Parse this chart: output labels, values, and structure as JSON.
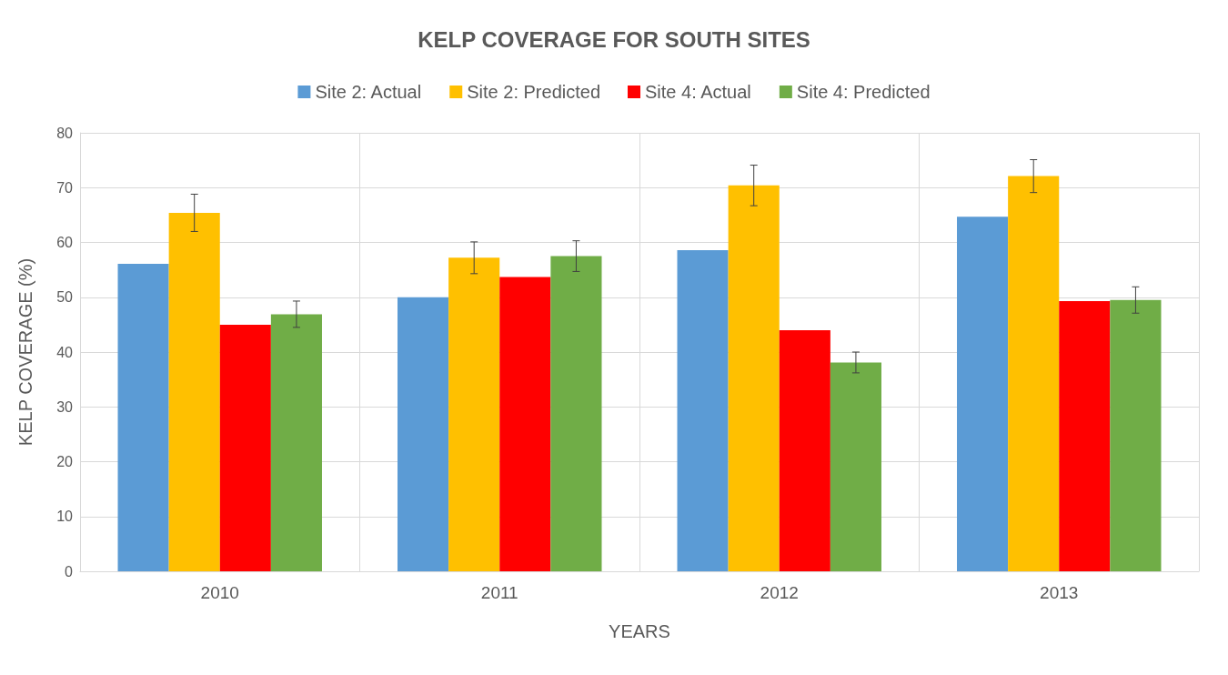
{
  "chart_data": {
    "type": "bar",
    "title": "KELP COVERAGE FOR SOUTH SITES",
    "xlabel": "YEARS",
    "ylabel": "KELP COVERAGE (%)",
    "categories": [
      "2010",
      "2011",
      "2012",
      "2013"
    ],
    "series": [
      {
        "name": "Site 2: Actual",
        "color": "#5b9bd5",
        "values": [
          56.1,
          50,
          58.6,
          64.7
        ]
      },
      {
        "name": "Site 2: Predicted",
        "color": "#ffc000",
        "values": [
          65.4,
          57.2,
          70.4,
          72.1
        ],
        "errors": [
          3.4,
          2.9,
          3.7,
          3.0
        ]
      },
      {
        "name": "Site 4: Actual",
        "color": "#ff0000",
        "values": [
          45,
          53.7,
          44,
          49.3
        ]
      },
      {
        "name": "Site 4: Predicted",
        "color": "#70ad47",
        "values": [
          46.9,
          57.5,
          38.1,
          49.5
        ],
        "errors": [
          2.4,
          2.8,
          1.9,
          2.4
        ]
      }
    ],
    "ylim": [
      0,
      80
    ],
    "yticks": [
      0,
      10,
      20,
      30,
      40,
      50,
      60,
      70,
      80
    ],
    "grid": true,
    "legend": "top"
  }
}
